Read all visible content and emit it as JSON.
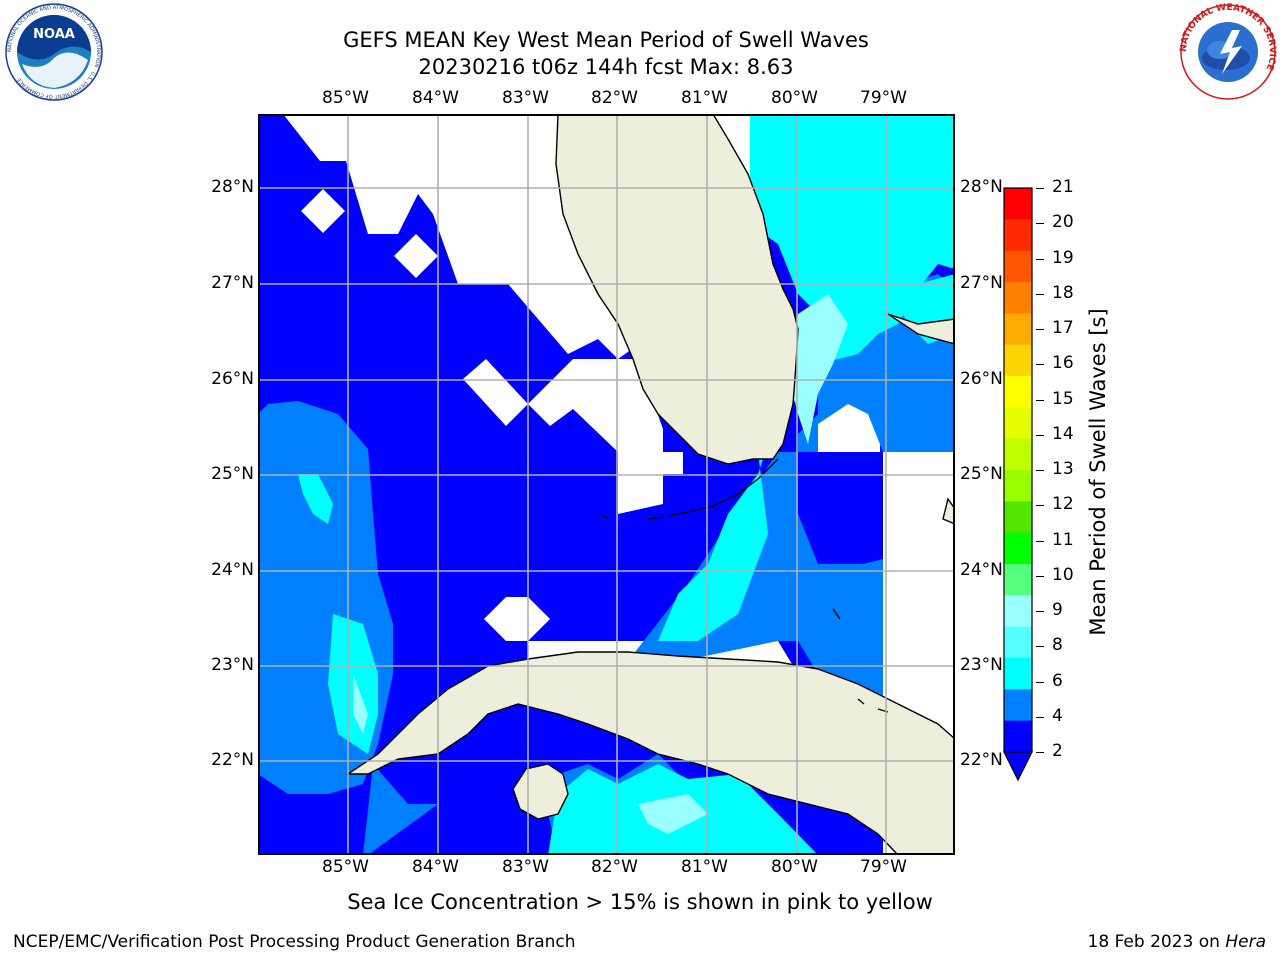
{
  "title": {
    "line1": "GEFS MEAN Key West Mean Period of Swell Waves",
    "line2": "20230216 t06z 144h fcst   Max: 8.63"
  },
  "logos": {
    "left": {
      "icon": "noaa-logo",
      "text": "NOAA",
      "ring_text": "NATIONAL OCEANIC AND ATMOSPHERIC ADMINISTRATION · U.S. DEPARTMENT OF COMMERCE"
    },
    "right": {
      "icon": "nws-logo",
      "ring_text": "NATIONAL WEATHER SERVICE"
    }
  },
  "map": {
    "lon_ticks": [
      "85°W",
      "84°W",
      "83°W",
      "82°W",
      "81°W",
      "80°W",
      "79°W"
    ],
    "lat_ticks": [
      "28°N",
      "27°N",
      "26°N",
      "25°N",
      "24°N",
      "23°N",
      "22°N"
    ],
    "colors": {
      "land": "#eeeedd",
      "missing": "#ffffff",
      "level_2_4": "#0000ff",
      "level_4_6": "#0080ff",
      "level_6_8": "#00ffff",
      "level_8_9": "#99ffff",
      "grid": "#b0b0b0",
      "coast": "#000000"
    }
  },
  "colorbar": {
    "label": "Mean Period of Swell Waves [s]",
    "ticks": [
      "21",
      "20",
      "19",
      "18",
      "17",
      "16",
      "15",
      "14",
      "13",
      "12",
      "11",
      "10",
      "9",
      "8",
      "6",
      "4",
      "2"
    ],
    "colors": [
      "#ff0000",
      "#ff2a00",
      "#ff5500",
      "#ff7f00",
      "#ffaa00",
      "#ffd400",
      "#ffff00",
      "#e5ff00",
      "#bfff00",
      "#99ff00",
      "#55e600",
      "#00ff00",
      "#55ff7f",
      "#99ffff",
      "#55ffff",
      "#00ffff",
      "#0080ff",
      "#0000ff"
    ]
  },
  "note": "Sea Ice Concentration > 15% is shown in pink to yellow",
  "footer": {
    "left": "NCEP/EMC/Verification Post Processing Product Generation Branch",
    "right_prefix": "18 Feb 2023 on ",
    "right_machine": "Hera"
  }
}
